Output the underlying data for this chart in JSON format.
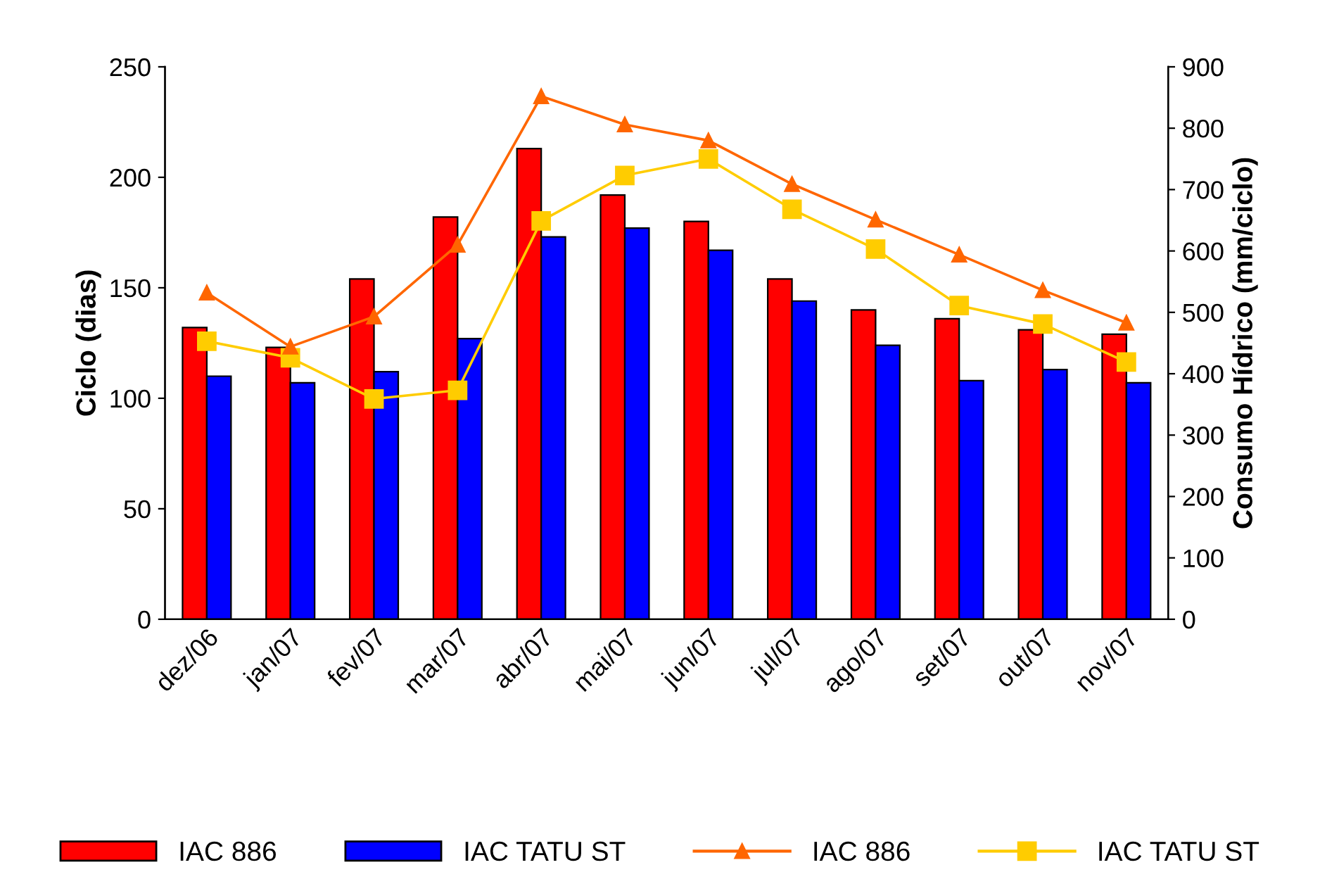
{
  "chart_data": {
    "type": "bar",
    "ylabel": "Ciclo (dias)",
    "y2label": "Consumo Hídrico (mm/ciclo)",
    "categories": [
      "dez/06",
      "jan/07",
      "fev/07",
      "mar/07",
      "abr/07",
      "mai/07",
      "jun/07",
      "jul/07",
      "ago/07",
      "set/07",
      "out/07",
      "nov/07"
    ],
    "series": [
      {
        "name": "IAC 886",
        "color": "#ff0000",
        "values": [
          132,
          123,
          154,
          182,
          213,
          192,
          180,
          154,
          140,
          136,
          131,
          129
        ]
      },
      {
        "name": "IAC TATU ST",
        "color": "#0000ff",
        "values": [
          110,
          107,
          112,
          127,
          173,
          177,
          167,
          144,
          124,
          108,
          113,
          107
        ]
      },
      {
        "name": "IAC 886",
        "type": "line",
        "axis": "y2",
        "marker": "triangle",
        "color": "#ff6600",
        "values": [
          532,
          444,
          493,
          610,
          852,
          806,
          780,
          709,
          651,
          594,
          536,
          483
        ]
      },
      {
        "name": "IAC TATU ST",
        "type": "line",
        "axis": "y2",
        "marker": "square",
        "color": "#ffcc00",
        "values": [
          453,
          426,
          359,
          373,
          649,
          723,
          750,
          668,
          603,
          511,
          481,
          419
        ]
      }
    ],
    "ylim": [
      0,
      250
    ],
    "yticks": [
      0,
      50,
      100,
      150,
      200,
      250
    ],
    "y2lim": [
      0,
      900
    ],
    "y2ticks": [
      0,
      100,
      200,
      300,
      400,
      500,
      600,
      700,
      800,
      900
    ],
    "grid": false,
    "legend": "bottom",
    "line_style": "solid"
  }
}
